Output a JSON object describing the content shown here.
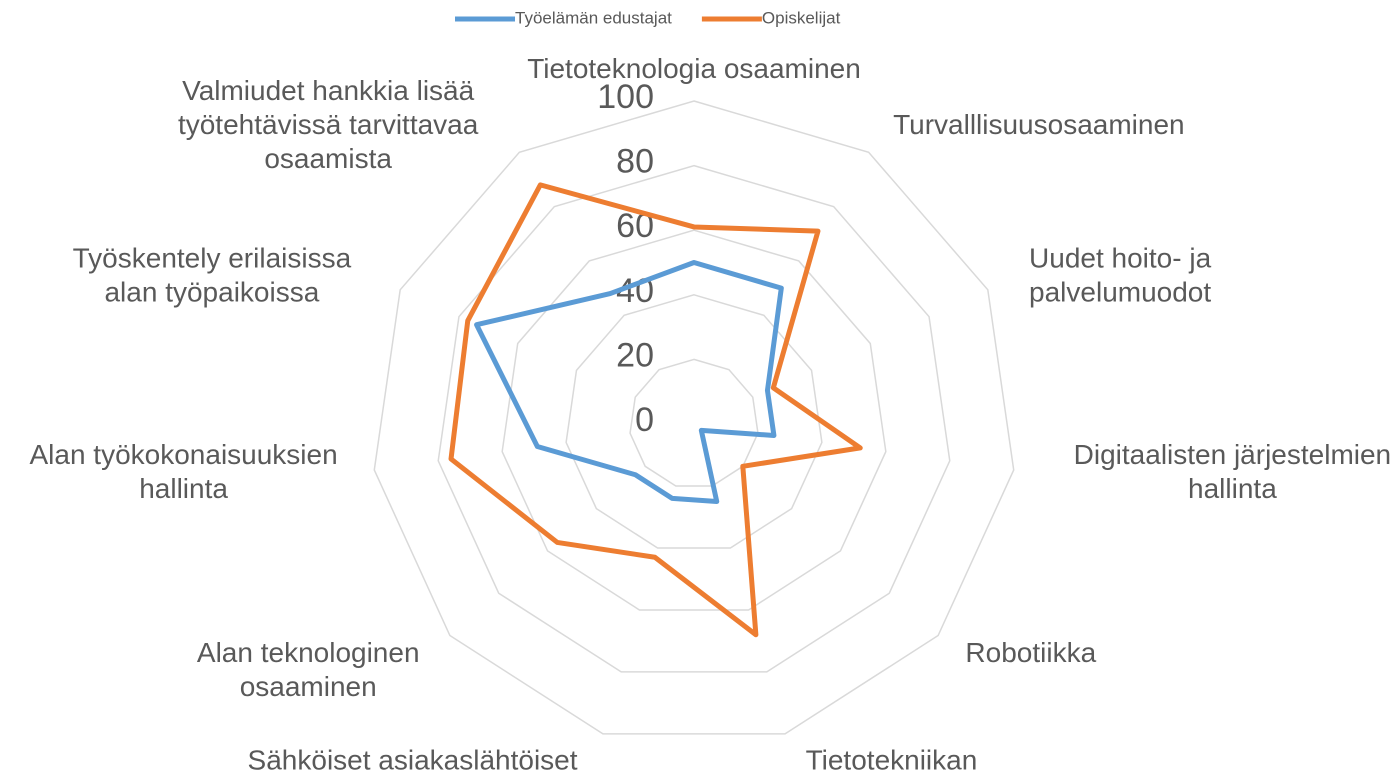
{
  "chart_data": {
    "type": "radar",
    "categories": [
      "Tietoteknologia osaaminen",
      "Turvalllisuusosaaminen",
      "Uudet hoito- ja\npalvelumuodot",
      "Digitaalisten järjestelmien\nhallinta",
      "Robotiikka",
      "Tietotekniikan\nhyödyntäminen",
      "Sähköiset asiakaslähtöiset\npalvelut",
      "Alan teknologinen\nosaaminen",
      "Alan työkokonaisuuksien\nhallinta",
      "Työskentely erilaisissa\nalan työpaikoissa",
      "Valmiudet hankkia lisää\ntyötehtävissä tarvittavaa\nosaamista"
    ],
    "series": [
      {
        "name": "Työelämän edustajat",
        "color": "#5b9bd5",
        "values": [
          50,
          50,
          25,
          25,
          3,
          25,
          24,
          24,
          49,
          74,
          48
        ]
      },
      {
        "name": "Opiskelijat",
        "color": "#ed7d31",
        "values": [
          61,
          71,
          27,
          52,
          20,
          68,
          43,
          56,
          76,
          77,
          88
        ]
      }
    ],
    "ylim": [
      0,
      100
    ],
    "yticks": [
      0,
      20,
      40,
      60,
      80,
      100
    ],
    "grid": true,
    "legend": "top"
  }
}
